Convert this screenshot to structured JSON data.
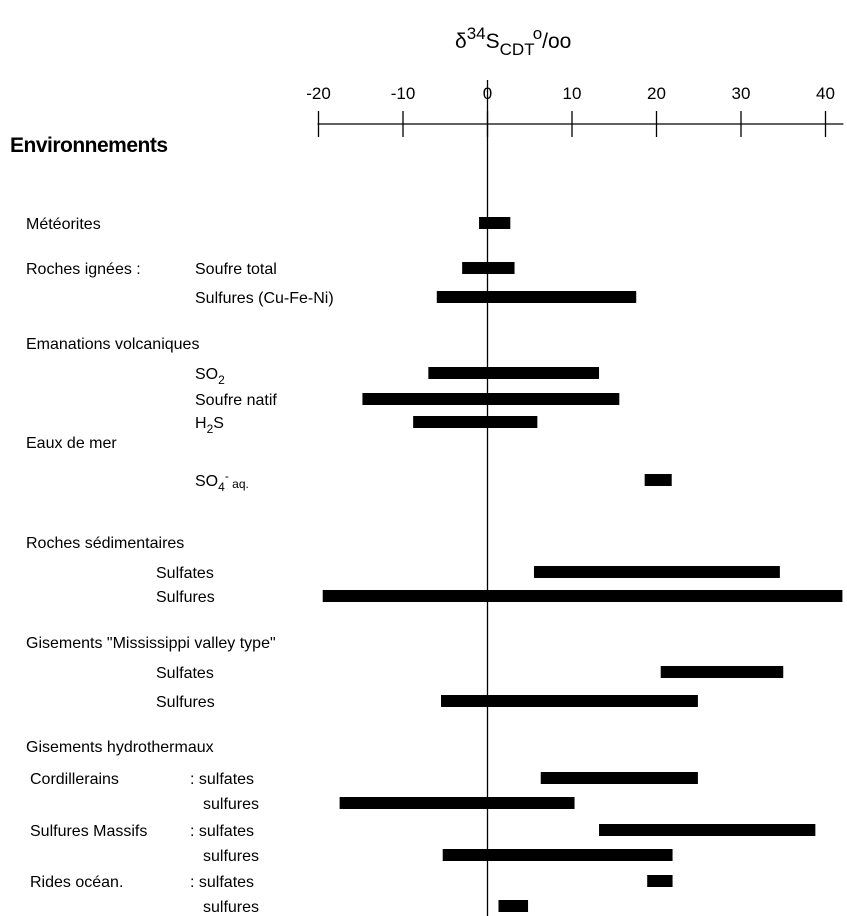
{
  "chart_data": {
    "type": "range_bar",
    "title": "",
    "axis": {
      "label": {
        "delta": "δ",
        "sup": "34",
        "base": "S",
        "sub": "CDT",
        "unit_sup": "o",
        "unit": "/oo"
      },
      "range": [
        -20,
        42
      ],
      "ticks": [
        -20,
        -10,
        0,
        10,
        20,
        30,
        40
      ],
      "tick_labels": [
        "-20",
        "-10",
        "0",
        "10",
        "20",
        "30",
        "40"
      ],
      "placement": "top",
      "zero_line": true
    },
    "heading": "Environnements",
    "groups": [
      {
        "label": "Météorites",
        "items": [
          {
            "label": "",
            "range": [
              -1,
              2.7
            ]
          }
        ]
      },
      {
        "label": "Roches ignées :",
        "inline": true,
        "items": [
          {
            "label": "Soufre total",
            "range": [
              -3,
              3.2
            ]
          },
          {
            "label": "Sulfures (Cu-Fe-Ni)",
            "range": [
              -6,
              17.6
            ]
          }
        ]
      },
      {
        "label": "Emanations volcaniques",
        "items": [
          {
            "label": "SO",
            "sub": "2",
            "range": [
              -7,
              13.2
            ]
          },
          {
            "label": "Soufre natif",
            "range": [
              -14.8,
              15.6
            ]
          },
          {
            "label": "H",
            "sub": "2",
            "label_after": "S",
            "range": [
              -8.8,
              5.9
            ]
          }
        ]
      },
      {
        "label": "Eaux de mer",
        "items": [
          {
            "label": "SO",
            "sub": "4",
            "sup": "-",
            "label_after": " aq.",
            "range": [
              18.6,
              21.8
            ]
          }
        ]
      },
      {
        "label": "Roches sédimentaires",
        "items": [
          {
            "label": "Sulfates",
            "range": [
              5.5,
              34.6
            ]
          },
          {
            "label": "Sulfures",
            "range": [
              -19.5,
              42
            ]
          }
        ]
      },
      {
        "label": "Gisements \"Mississippi valley type\"",
        "items": [
          {
            "label": "Sulfates",
            "range": [
              20.5,
              35
            ]
          },
          {
            "label": "Sulfures",
            "range": [
              -5.5,
              24.9
            ]
          }
        ]
      },
      {
        "label": "Gisements hydrothermaux",
        "items": [
          {
            "prefix": "Cordillerains",
            "colon": ": sulfates",
            "range": [
              6.3,
              24.9
            ]
          },
          {
            "label": "sulfures",
            "range": [
              -17.5,
              10.3
            ]
          },
          {
            "prefix": "Sulfures Massifs",
            "colon": ": sulfates",
            "range": [
              13.2,
              38.8
            ]
          },
          {
            "label": "sulfures",
            "range": [
              -5.3,
              21.9
            ]
          },
          {
            "prefix": "Rides océan.",
            "colon": ": sulfates",
            "range": [
              18.9,
              21.9
            ]
          },
          {
            "label": "sulfures",
            "range": [
              1.3,
              4.8
            ]
          }
        ]
      }
    ]
  }
}
